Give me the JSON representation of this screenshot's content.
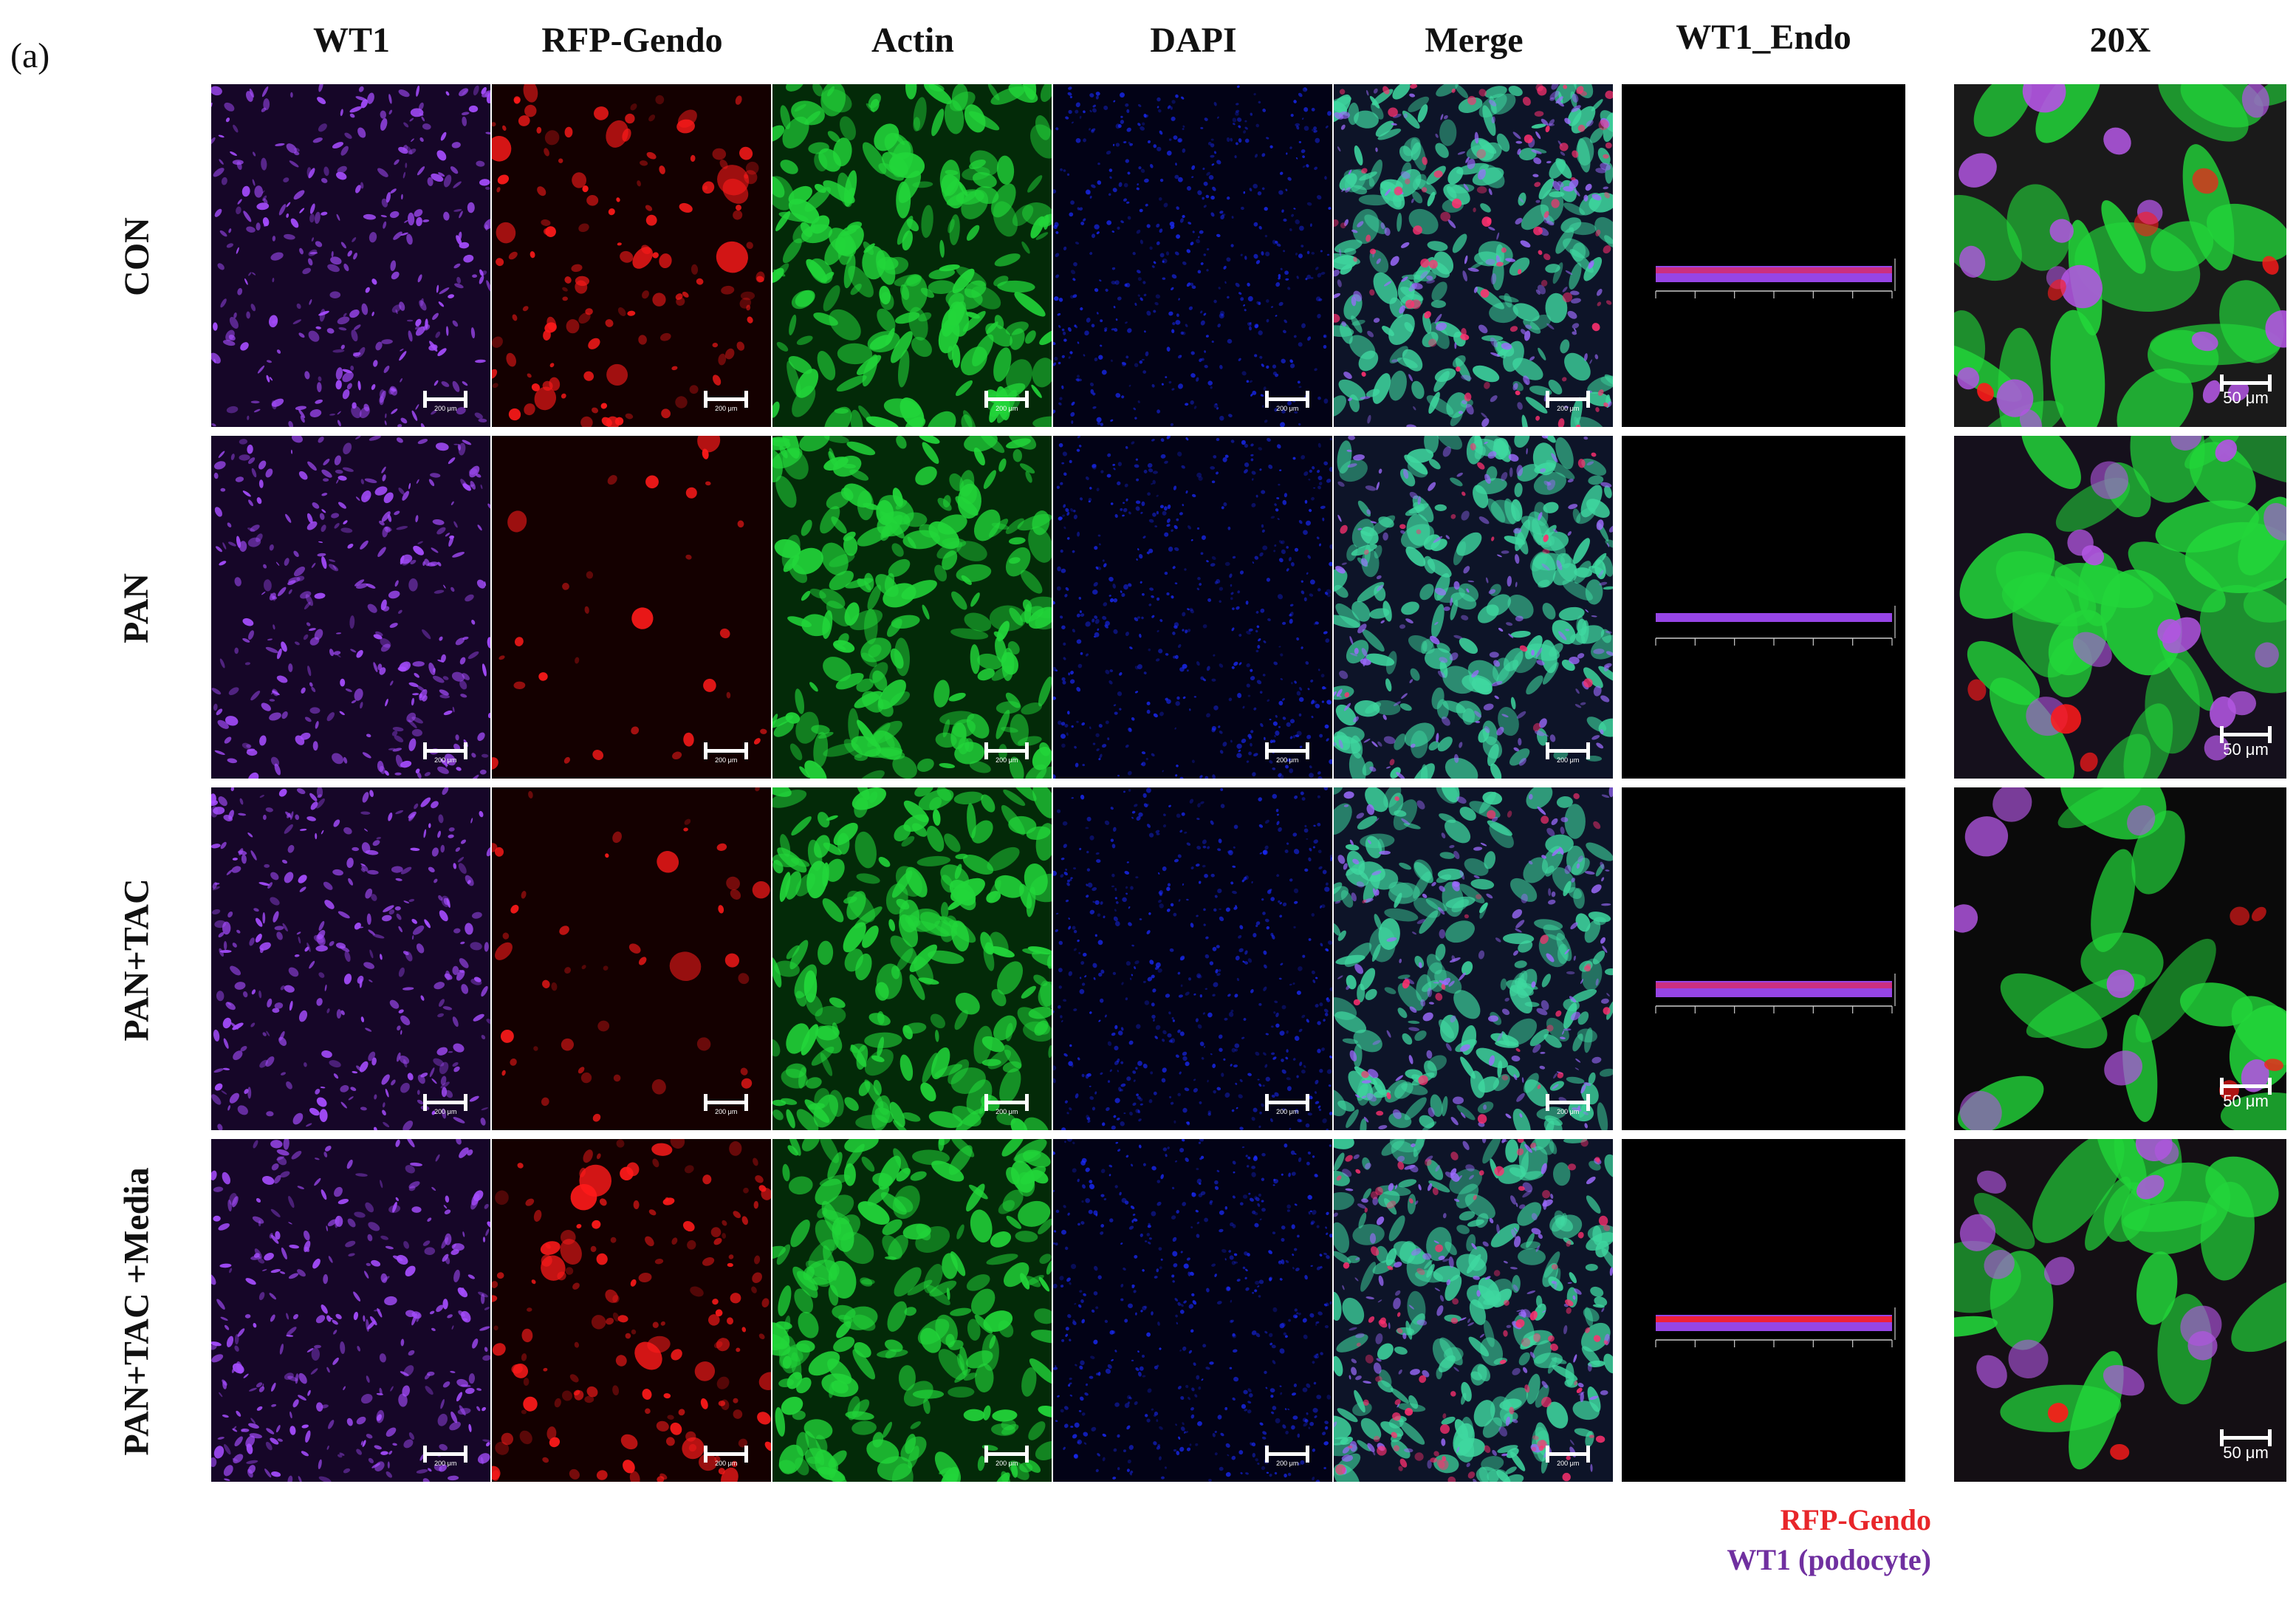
{
  "figure": {
    "panel_letter": "(a)",
    "column_headers": [
      "WT1",
      "RFP-Gendo",
      "Actin",
      "DAPI",
      "Merge",
      "WT1_Endo",
      "20X"
    ],
    "row_labels": [
      "CON",
      "PAN",
      "PAN+TAC",
      "PAN+TAC +Media"
    ],
    "scale_bar_label_tiles": "200 μm",
    "scale_bar_label_20x": "50 μm",
    "legend": {
      "rfp": "RFP-Gendo",
      "wt1": "WT1 (podocyte)",
      "rfp_color": "#e8262a",
      "wt1_color": "#7030a0"
    },
    "channel_colors": {
      "wt1": "#a64dff",
      "rfp": "#ff1a1a",
      "actin": "#22d63a",
      "dapi": "#1a2bff"
    }
  }
}
